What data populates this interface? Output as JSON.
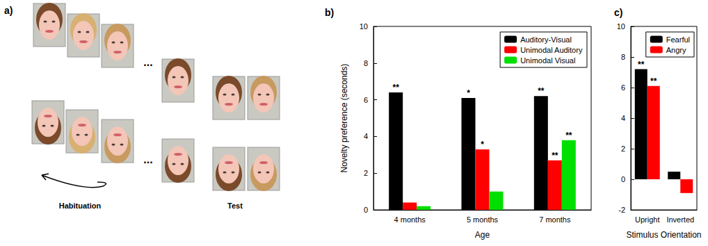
{
  "diagram": {
    "label": "a)",
    "ellipsis": "...",
    "captions": [
      "Habituation",
      "Test"
    ]
  },
  "chart_data": [
    {
      "type": "bar",
      "label": "b)",
      "x_label": "Age",
      "y_label": "Novelty preference (seconds)",
      "categories": [
        "4 months",
        "5 months",
        "7 months"
      ],
      "series": [
        {
          "name": "Auditory-Visual",
          "color": "#000000",
          "values": [
            6.4,
            6.1,
            6.2
          ],
          "significance": [
            "**",
            "*",
            "**"
          ]
        },
        {
          "name": "Unimodal Auditory",
          "color": "#ff0000",
          "values": [
            0.4,
            3.3,
            2.7
          ],
          "significance": [
            null,
            "*",
            "**"
          ]
        },
        {
          "name": "Unimodal Visual",
          "color": "#00e000",
          "values": [
            0.2,
            1.0,
            3.8
          ],
          "significance": [
            null,
            null,
            "**"
          ]
        }
      ],
      "ylim": [
        0,
        10
      ],
      "yticks": [
        0,
        2,
        4,
        6,
        8,
        10
      ],
      "grid": false,
      "legend": "upper right"
    },
    {
      "type": "bar",
      "label": "c)",
      "x_label": "Stimulus Orientation",
      "categories": [
        "Upright",
        "Inverted"
      ],
      "series": [
        {
          "name": "Fearful",
          "color": "#000000",
          "values": [
            7.2,
            0.5
          ],
          "significance": [
            "**",
            null
          ]
        },
        {
          "name": "Angry",
          "color": "#ff0000",
          "values": [
            6.1,
            -0.9
          ],
          "significance": [
            "**",
            null
          ]
        }
      ],
      "ylim": [
        -2,
        10
      ],
      "yticks": [
        -2,
        0,
        2,
        4,
        6,
        8,
        10
      ],
      "grid": false,
      "legend": "upper right"
    }
  ]
}
